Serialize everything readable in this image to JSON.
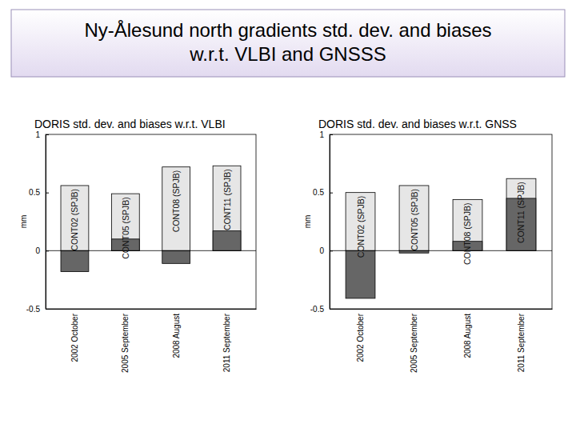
{
  "slide_title": [
    "Ny-Ålesund north gradients std. dev. and biases",
    "w.r.t. VLBI and GNSSS"
  ],
  "chart_data": [
    {
      "type": "bar",
      "title": "DORIS std. dev. and biases w.r.t. VLBI",
      "ylabel": "mm",
      "categories": [
        "2002 October",
        "2005 September",
        "2008 August",
        "2011 September"
      ],
      "annotations": [
        "CONT02 (SPJB)",
        "CONT05 (SPJB)",
        "CONT08 (SPJB)",
        "CONT11 (SPJB)"
      ],
      "series": [
        {
          "color": "#e6e6e6",
          "values": [
            0.56,
            0.49,
            0.72,
            0.73
          ]
        },
        {
          "color": "#666666",
          "values": [
            -0.18,
            0.1,
            -0.11,
            0.17
          ]
        }
      ],
      "ylim": [
        -0.5,
        1
      ],
      "yticks": [
        -0.5,
        0,
        0.5,
        1
      ],
      "grid": false
    },
    {
      "type": "bar",
      "title": "DORIS std. dev. and biases w.r.t. GNSS",
      "ylabel": "mm",
      "categories": [
        "2002 October",
        "2005 September",
        "2008 August",
        "2011 September"
      ],
      "annotations": [
        "CONT02 (SPJB)",
        "CONT05 (SPJB)",
        "CONT08 (SPJB)",
        "CONT11 (SPJB)"
      ],
      "series": [
        {
          "color": "#e6e6e6",
          "values": [
            0.5,
            0.56,
            0.44,
            0.62
          ]
        },
        {
          "color": "#666666",
          "values": [
            -0.41,
            -0.02,
            0.08,
            0.45
          ]
        }
      ],
      "ylim": [
        -0.5,
        1
      ],
      "yticks": [
        -0.5,
        0,
        0.5,
        1
      ],
      "grid": false
    }
  ]
}
